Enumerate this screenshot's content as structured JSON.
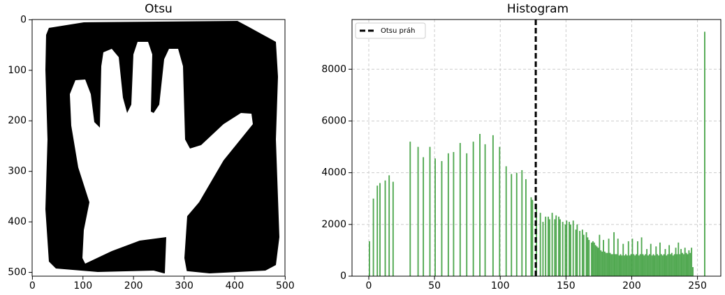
{
  "chart_data": [
    {
      "type": "image",
      "title": "Otsu",
      "xlim": [
        -0.5,
        499.5
      ],
      "ylim": [
        507.5,
        -0.5
      ],
      "xticks": [
        0,
        100,
        200,
        300,
        400,
        500
      ],
      "yticks": [
        0,
        100,
        200,
        300,
        400,
        500
      ]
    },
    {
      "type": "histogram",
      "title": "Histogram",
      "color": "#3d9e3d",
      "grid": true,
      "legend": "upper left",
      "threshold": {
        "name": "Otsu práh",
        "value": 127
      },
      "xlim": [
        -12.75,
        267.75
      ],
      "ylim": [
        0,
        9922
      ],
      "xticks": [
        0,
        50,
        100,
        150,
        200,
        250
      ],
      "yticks": [
        0,
        2000,
        4000,
        6000,
        8000
      ],
      "x": [
        0,
        3,
        6,
        8,
        12,
        15,
        18,
        31,
        37,
        41,
        46,
        50,
        55,
        60,
        64,
        69,
        74,
        79,
        84,
        88,
        94,
        99,
        104,
        108,
        112,
        116,
        119,
        123,
        124,
        127,
        130,
        132,
        134,
        136,
        137,
        139,
        141,
        142,
        144,
        145,
        147,
        149,
        150,
        152,
        153,
        155,
        157,
        158,
        160,
        162,
        163,
        165,
        166,
        167,
        169,
        170,
        171,
        172,
        173,
        174,
        175,
        176,
        177,
        178,
        179,
        180,
        181,
        182,
        183,
        184,
        185,
        186,
        187,
        188,
        189,
        190,
        191,
        192,
        193,
        194,
        195,
        196,
        197,
        198,
        199,
        200,
        201,
        202,
        203,
        204,
        205,
        206,
        207,
        208,
        209,
        210,
        211,
        212,
        213,
        214,
        215,
        216,
        217,
        218,
        219,
        220,
        221,
        222,
        223,
        224,
        225,
        226,
        227,
        228,
        229,
        230,
        231,
        232,
        233,
        234,
        235,
        236,
        237,
        238,
        239,
        240,
        241,
        242,
        243,
        244,
        245,
        246,
        255
      ],
      "values": [
        1350,
        3000,
        3500,
        3600,
        3700,
        3900,
        3650,
        5200,
        5000,
        4600,
        5000,
        4550,
        4450,
        4750,
        4800,
        5150,
        4750,
        5200,
        5500,
        5100,
        5450,
        5000,
        4250,
        3950,
        4000,
        4100,
        3750,
        3050,
        2950,
        2800,
        2450,
        2100,
        2300,
        2300,
        2200,
        2450,
        2200,
        2350,
        2300,
        2200,
        2100,
        2000,
        2150,
        2100,
        2000,
        2150,
        1800,
        2000,
        1750,
        1800,
        1600,
        1700,
        1500,
        1400,
        1300,
        1350,
        1300,
        1200,
        1150,
        1100,
        1600,
        1000,
        950,
        1400,
        950,
        900,
        900,
        1450,
        900,
        850,
        850,
        1700,
        850,
        850,
        1450,
        800,
        850,
        800,
        1250,
        800,
        850,
        800,
        1350,
        800,
        850,
        1450,
        850,
        800,
        850,
        1350,
        800,
        850,
        1500,
        850,
        800,
        850,
        1050,
        800,
        850,
        1250,
        800,
        850,
        800,
        1150,
        850,
        800,
        1300,
        850,
        800,
        850,
        1050,
        800,
        850,
        1200,
        850,
        900,
        800,
        850,
        1100,
        850,
        1300,
        850,
        1050,
        900,
        850,
        1100,
        900,
        850,
        1000,
        900,
        1100,
        350,
        9450
      ]
    }
  ]
}
